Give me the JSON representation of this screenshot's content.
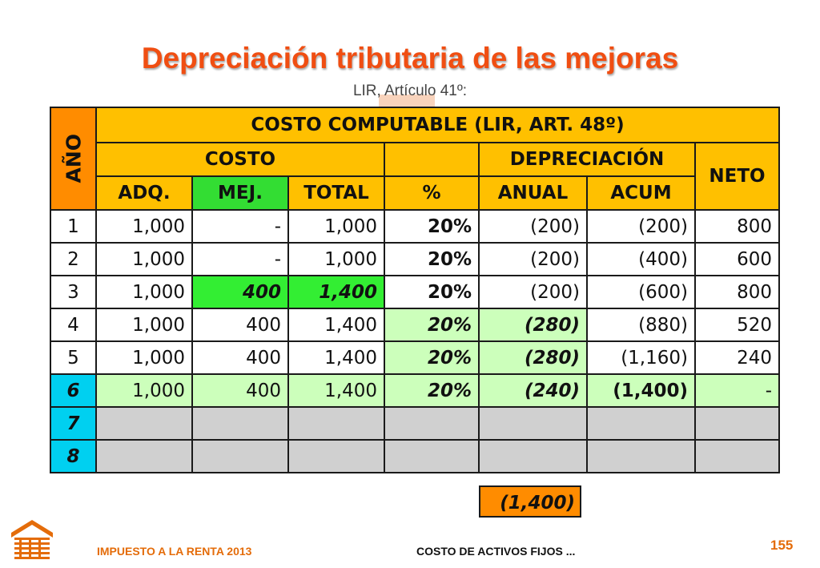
{
  "title": "Depreciación tributaria de las mejoras",
  "subtitle": "LIR, Artículo 41º:",
  "table": {
    "year_header": "AÑO",
    "top_header": "COSTO COMPUTABLE (LIR, ART. 48º)",
    "costo_header": "COSTO",
    "depreciacion_header": "DEPRECIACIÓN",
    "neto_header": "NETO",
    "col_adq": "ADQ.",
    "col_mej": "MEJ.",
    "col_total": "TOTAL",
    "col_pct": "%",
    "col_anual": "ANUAL",
    "col_acum": "ACUM",
    "rows": [
      {
        "year": "1",
        "adq": "1,000",
        "mej": "-",
        "total": "1,000",
        "pct": "20%",
        "anual": "(200)",
        "acum": "(200)",
        "neto": "800"
      },
      {
        "year": "2",
        "adq": "1,000",
        "mej": "-",
        "total": "1,000",
        "pct": "20%",
        "anual": "(200)",
        "acum": "(400)",
        "neto": "600"
      },
      {
        "year": "3",
        "adq": "1,000",
        "mej": "400",
        "total": "1,400",
        "pct": "20%",
        "anual": "(200)",
        "acum": "(600)",
        "neto": "800"
      },
      {
        "year": "4",
        "adq": "1,000",
        "mej": "400",
        "total": "1,400",
        "pct": "20%",
        "anual": "(280)",
        "acum": "(880)",
        "neto": "520"
      },
      {
        "year": "5",
        "adq": "1,000",
        "mej": "400",
        "total": "1,400",
        "pct": "20%",
        "anual": "(280)",
        "acum": "(1,160)",
        "neto": "240"
      },
      {
        "year": "6",
        "adq": "1,000",
        "mej": "400",
        "total": "1,400",
        "pct": "20%",
        "anual": "(240)",
        "acum": "(1,400)",
        "neto": "-"
      },
      {
        "year": "7",
        "adq": "",
        "mej": "",
        "total": "",
        "pct": "",
        "anual": "",
        "acum": "",
        "neto": ""
      },
      {
        "year": "8",
        "adq": "",
        "mej": "",
        "total": "",
        "pct": "",
        "anual": "",
        "acum": "",
        "neto": ""
      }
    ],
    "total_anual": "(1,400)"
  },
  "footer": {
    "left": "IMPUESTO A LA RENTA 2013",
    "middle": "COSTO DE ACTIVOS FIJOS ...",
    "page": "155"
  },
  "colors": {
    "title": "#f04e12",
    "header_yellow": "#ffc000",
    "header_orange": "#ff8c00",
    "highlight_green": "#33ee33",
    "light_green": "#ccffbb",
    "cyan": "#00d0f0",
    "gray": "#d0d0d0"
  },
  "icons": {
    "logo": "building-logo-icon"
  }
}
